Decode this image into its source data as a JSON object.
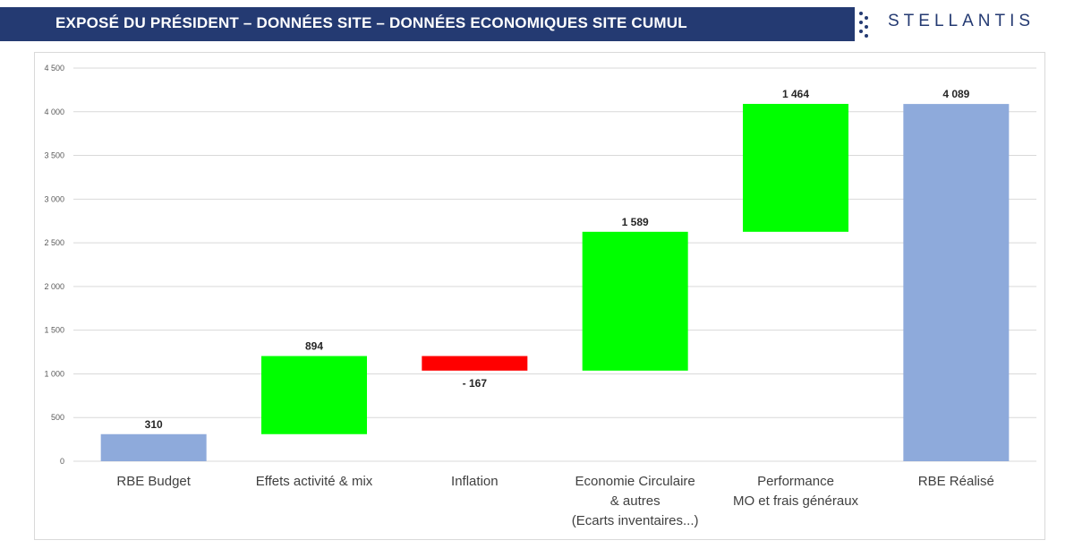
{
  "header": {
    "title": "EXPOSÉ DU PRÉSIDENT – DONNÉES SITE – DONNÉES ECONOMIQUES SITE CUMUL",
    "logo_text": "STELLANTIS",
    "dots_icon": "vertical-dots-icon"
  },
  "colors": {
    "header_bg": "#243a72",
    "total": "#8eaadb",
    "increase": "#00ff00",
    "decrease": "#ff0000",
    "grid": "#d9d9d9"
  },
  "chart_data": {
    "type": "bar",
    "subtype": "waterfall",
    "title": "",
    "xlabel": "",
    "ylabel": "",
    "ylim": [
      0,
      4500
    ],
    "yticks": [
      0,
      500,
      1000,
      1500,
      2000,
      2500,
      3000,
      3500,
      4000,
      4500
    ],
    "ytick_labels": [
      "0",
      "500",
      "1 000",
      "1 500",
      "2 000",
      "2 500",
      "3 000",
      "3 500",
      "4 000",
      "4 500"
    ],
    "grid": true,
    "legend": "none",
    "categories": [
      [
        "RBE Budget"
      ],
      [
        "Effets activité & mix"
      ],
      [
        "Inflation"
      ],
      [
        "Economie Circulaire",
        "& autres",
        "(Ecarts inventaires...)"
      ],
      [
        "Performance",
        "MO et frais généraux"
      ],
      [
        "RBE Réalisé"
      ]
    ],
    "values": [
      310,
      894,
      -167,
      1589,
      1464,
      4089
    ],
    "data_labels": [
      "310",
      "894",
      "- 167",
      "1 589",
      "1 464",
      "4 089"
    ],
    "kinds": [
      "total",
      "increase",
      "decrease",
      "increase",
      "increase",
      "total"
    ]
  }
}
